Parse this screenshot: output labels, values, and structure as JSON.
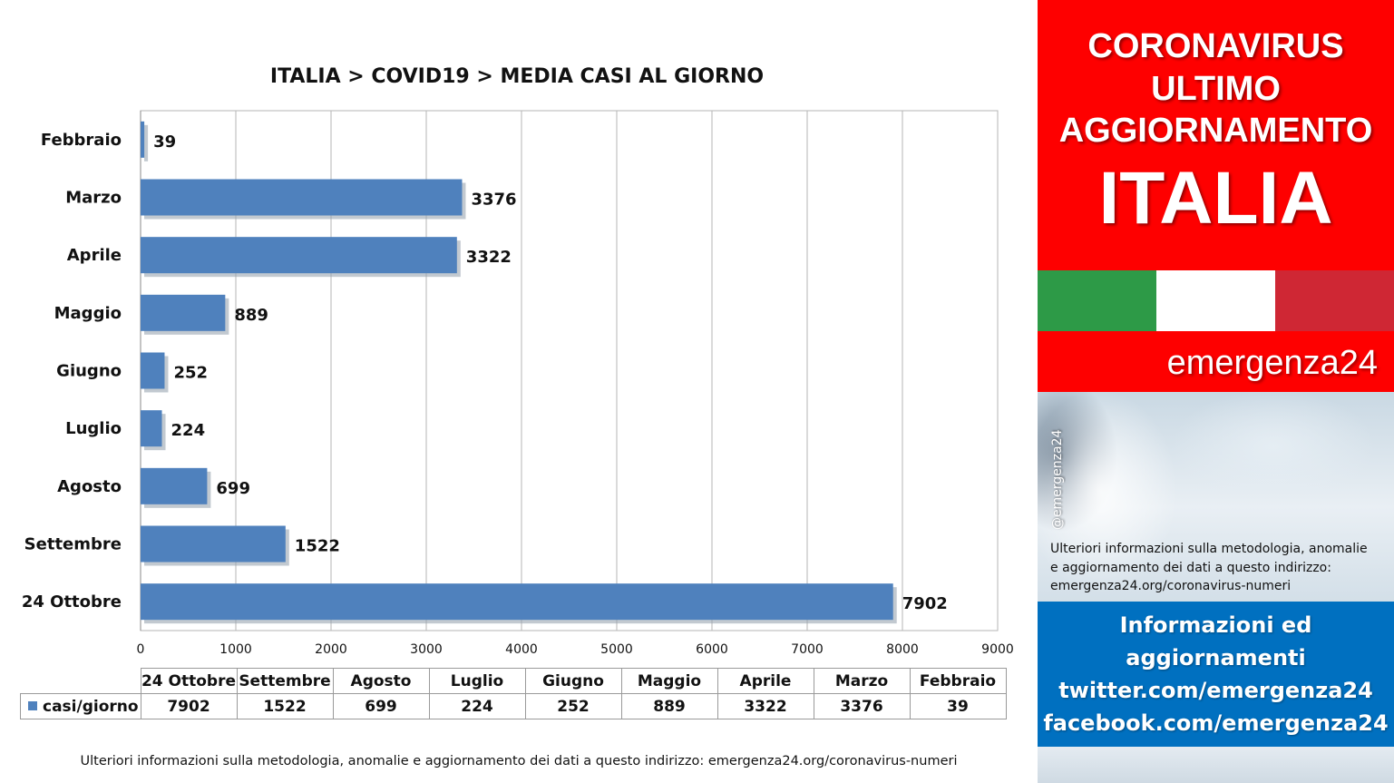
{
  "chart_data": {
    "type": "bar",
    "orientation": "horizontal",
    "title": "ITALIA >  COVID19 > MEDIA CASI AL GIORNO",
    "categories": [
      "Febbraio",
      "Marzo",
      "Aprile",
      "Maggio",
      "Giugno",
      "Luglio",
      "Agosto",
      "Settembre",
      "24 Ottobre"
    ],
    "series": [
      {
        "name": "casi/giorno",
        "values": [
          39,
          3376,
          3322,
          889,
          252,
          224,
          699,
          1522,
          7902
        ]
      }
    ],
    "xlim": [
      0,
      9000
    ],
    "xticks": [
      0,
      1000,
      2000,
      3000,
      4000,
      5000,
      6000,
      7000,
      8000,
      9000
    ],
    "grid": true,
    "bar_color": "#4f81bd",
    "data_table": {
      "series_label": "casi/giorno",
      "columns": [
        "24 Ottobre",
        "Settembre",
        "Agosto",
        "Luglio",
        "Giugno",
        "Maggio",
        "Aprile",
        "Marzo",
        "Febbraio"
      ],
      "values": [
        "7902",
        "1522",
        "699",
        "224",
        "252",
        "889",
        "3322",
        "3376",
        "39"
      ]
    }
  },
  "footer_note": "Ulteriori informazioni sulla metodologia, anomalie e aggiornamento dei dati a questo indirizzo: emergenza24.org/coronavirus-numeri",
  "sidebar": {
    "header_lines": [
      "CORONAVIRUS",
      "ULTIMO",
      "AGGIORNAMENTO"
    ],
    "country": "ITALIA",
    "brand": "emergenza24",
    "handle": "@emergenza24",
    "info_lines": [
      "Ulteriori informazioni sulla metodologia, anomalie",
      "e aggiornamento dei dati a questo indirizzo:",
      "emergenza24.org/coronavirus-numeri"
    ],
    "links": [
      "Informazioni ed",
      "aggiornamenti",
      "twitter.com/emergenza24",
      "facebook.com/emergenza24"
    ],
    "colors": {
      "red": "#fe0000",
      "blue": "#0070c0",
      "flag_green": "#2d9a47",
      "flag_white": "#ffffff",
      "flag_red": "#cf2734"
    }
  }
}
